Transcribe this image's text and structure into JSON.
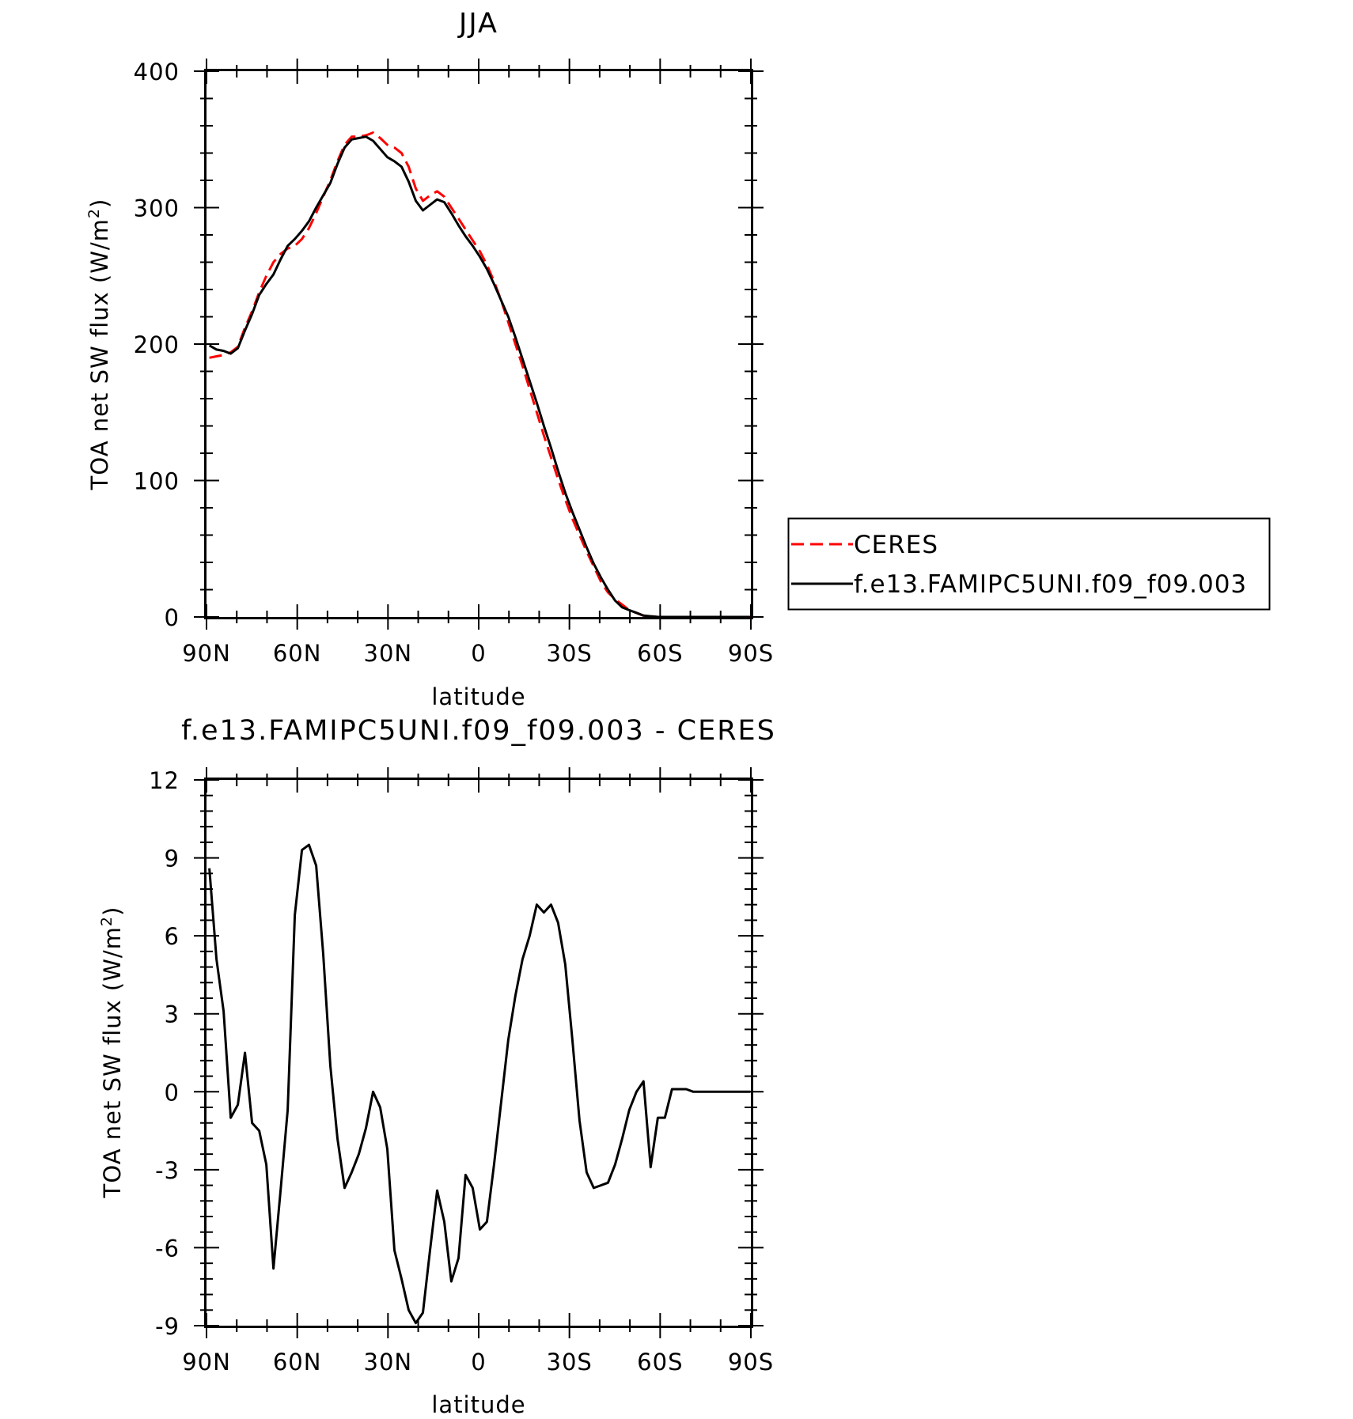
{
  "chart_data": [
    {
      "type": "line",
      "title": "JJA",
      "xlabel": "latitude",
      "ylabel": "TOA net SW flux (W/m",
      "ylabel_sup": "2",
      "ylabel_close": ")",
      "ylim": [
        0,
        400
      ],
      "yticks": [
        "0",
        "100",
        "200",
        "300",
        "400"
      ],
      "xlim": [
        90,
        -90
      ],
      "xticks": [
        "90N",
        "60N",
        "30N",
        "0",
        "30S",
        "60S",
        "90S"
      ],
      "legend": {
        "placement": "right",
        "entries": [
          "CERES",
          "f.e13.FAMIPC5UNI.f09_f09.003"
        ]
      },
      "x": [
        89.06,
        86.7,
        84.35,
        82.0,
        79.64,
        77.29,
        74.93,
        72.58,
        70.23,
        67.87,
        65.52,
        63.17,
        60.81,
        58.46,
        56.11,
        53.75,
        51.4,
        49.05,
        46.69,
        44.34,
        41.99,
        39.63,
        37.28,
        34.92,
        32.57,
        30.22,
        27.86,
        25.51,
        23.16,
        20.8,
        18.45,
        16.1,
        13.74,
        11.39,
        9.04,
        6.68,
        4.33,
        1.98,
        -0.38,
        -2.73,
        -5.08,
        -7.44,
        -9.79,
        -12.15,
        -14.5,
        -16.85,
        -19.21,
        -21.56,
        -23.91,
        -26.27,
        -28.62,
        -30.97,
        -33.33,
        -35.68,
        -38.03,
        -40.39,
        -42.74,
        -45.1,
        -47.45,
        -49.8,
        -52.16,
        -54.51,
        -56.86,
        -59.22,
        -61.57,
        -63.92,
        -66.28,
        -68.63,
        -70.98,
        -73.34,
        -75.69,
        -78.04,
        -80.4,
        -82.75,
        -85.1,
        -87.46,
        -89.81
      ],
      "series": [
        {
          "name": "CERES",
          "color": "#ff0000",
          "dash": "dashed",
          "values": [
            190,
            191,
            192,
            194,
            198,
            212,
            224,
            238,
            250,
            260,
            266,
            270,
            272,
            277,
            285,
            296,
            308,
            320,
            334,
            346,
            352,
            352,
            353,
            355,
            351,
            346,
            344,
            340,
            330,
            314,
            305,
            309,
            312,
            308,
            300,
            292,
            284,
            276,
            268,
            258,
            246,
            232,
            216,
            200,
            184,
            167,
            150,
            133,
            117,
            101,
            86,
            72,
            60,
            48,
            37,
            26,
            18,
            13,
            9,
            5,
            3,
            1,
            0.5,
            0,
            0,
            0,
            0,
            0,
            0,
            0,
            0,
            0,
            0,
            0,
            0,
            0,
            0
          ]
        },
        {
          "name": "f.e13.FAMIPC5UNI.f09_f09.003",
          "color": "#000000",
          "dash": "solid",
          "values": [
            199,
            196,
            195,
            193,
            197,
            210,
            222,
            236,
            244,
            251,
            262,
            272,
            277,
            283,
            290,
            300,
            309,
            318,
            332,
            344,
            350,
            351,
            352,
            349,
            343,
            337,
            334,
            330,
            319,
            305,
            298,
            302,
            306,
            304,
            296,
            287,
            279,
            272,
            264,
            255,
            244,
            232,
            220,
            205,
            189,
            173,
            157,
            140,
            124,
            107,
            91,
            77,
            64,
            51,
            39,
            29,
            20,
            12,
            7,
            5,
            3,
            1,
            0.5,
            0,
            0,
            0,
            0,
            0,
            0,
            0,
            0,
            0,
            0,
            0,
            0,
            0,
            0
          ]
        }
      ]
    },
    {
      "type": "line",
      "title": "f.e13.FAMIPC5UNI.f09_f09.003 - CERES",
      "xlabel": "latitude",
      "ylabel": "TOA net SW flux (W/m",
      "ylabel_sup": "2",
      "ylabel_close": ")",
      "ylim": [
        -9,
        12
      ],
      "yticks": [
        "-9",
        "-6",
        "-3",
        "0",
        "3",
        "6",
        "9",
        "12"
      ],
      "xlim": [
        90,
        -90
      ],
      "xticks": [
        "90N",
        "60N",
        "30N",
        "0",
        "30S",
        "60S",
        "90S"
      ],
      "series": [
        {
          "name": "f.e13.FAMIPC5UNI.f09_f09.003 - CERES",
          "color": "#000000",
          "dash": "solid",
          "x": [
            89.06,
            86.7,
            84.35,
            82.0,
            79.64,
            77.29,
            74.93,
            72.58,
            70.23,
            67.87,
            65.52,
            63.17,
            60.81,
            58.46,
            56.11,
            53.75,
            51.4,
            49.05,
            46.69,
            44.34,
            41.99,
            39.63,
            37.28,
            34.92,
            32.57,
            30.22,
            27.86,
            25.51,
            23.16,
            20.8,
            18.45,
            16.1,
            13.74,
            11.39,
            9.04,
            6.68,
            4.33,
            1.98,
            -0.38,
            -2.73,
            -5.08,
            -7.44,
            -9.79,
            -12.15,
            -14.5,
            -16.85,
            -19.21,
            -21.56,
            -23.91,
            -26.27,
            -28.62,
            -30.97,
            -33.33,
            -35.68,
            -38.03,
            -40.39,
            -42.74,
            -45.1,
            -47.45,
            -49.8,
            -52.16,
            -54.51,
            -56.86,
            -59.22,
            -61.57,
            -63.92,
            -66.28,
            -68.63,
            -70.98,
            -73.34,
            -75.69,
            -78.04,
            -80.4,
            -82.75,
            -85.1,
            -87.46,
            -89.81
          ],
          "values": [
            8.6,
            5.1,
            3.1,
            -1.0,
            -0.5,
            1.5,
            -1.2,
            -1.5,
            -2.8,
            -6.8,
            -3.8,
            -0.7,
            6.8,
            9.3,
            9.5,
            8.7,
            5.3,
            1.0,
            -1.8,
            -3.7,
            -3.1,
            -2.4,
            -1.4,
            0.0,
            -0.6,
            -2.2,
            -6.1,
            -7.2,
            -8.4,
            -8.9,
            -8.5,
            -6.1,
            -3.8,
            -5.0,
            -7.3,
            -6.4,
            -3.2,
            -3.7,
            -5.3,
            -5.0,
            -2.8,
            -0.4,
            2.0,
            3.7,
            5.1,
            6.0,
            7.2,
            6.9,
            7.2,
            6.5,
            4.9,
            2.0,
            -1.1,
            -3.1,
            -3.7,
            -3.6,
            -3.5,
            -2.8,
            -1.8,
            -0.7,
            0.0,
            0.4,
            -2.9,
            -1.0,
            -1.0,
            0.1,
            0.1,
            0.1,
            0.0,
            0.0,
            0.0,
            0.0,
            0.0,
            0.0,
            0.0,
            0.0,
            0.0
          ]
        }
      ]
    }
  ]
}
